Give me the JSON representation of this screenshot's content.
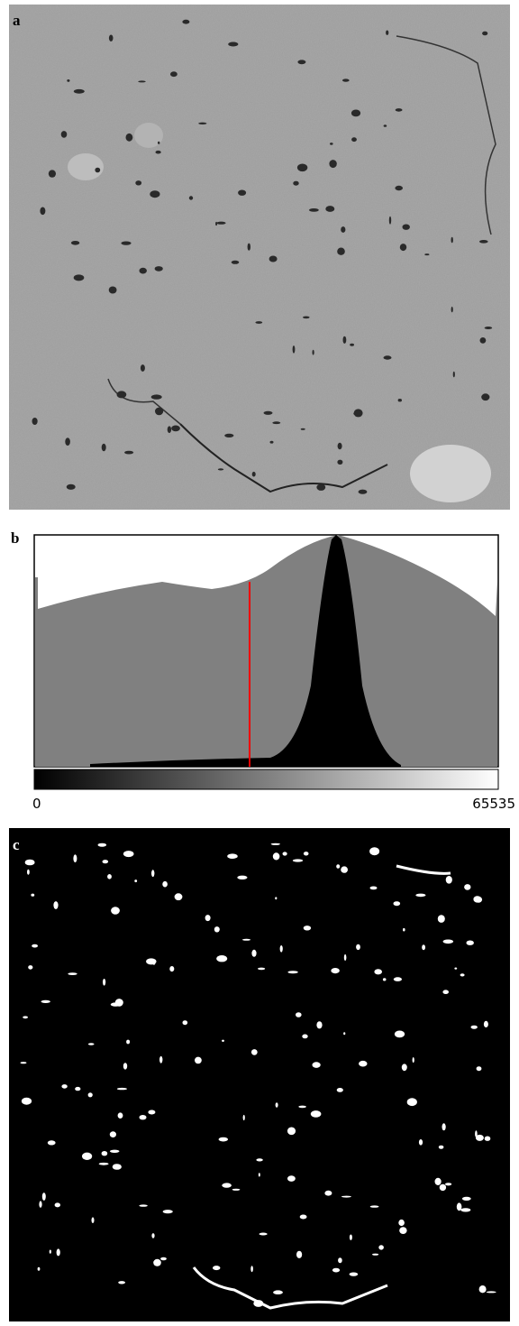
{
  "panels": [
    {
      "label": "a"
    },
    {
      "label": "b",
      "axis_min_label": "0",
      "axis_max_label": "65535"
    },
    {
      "label": "c"
    }
  ]
}
